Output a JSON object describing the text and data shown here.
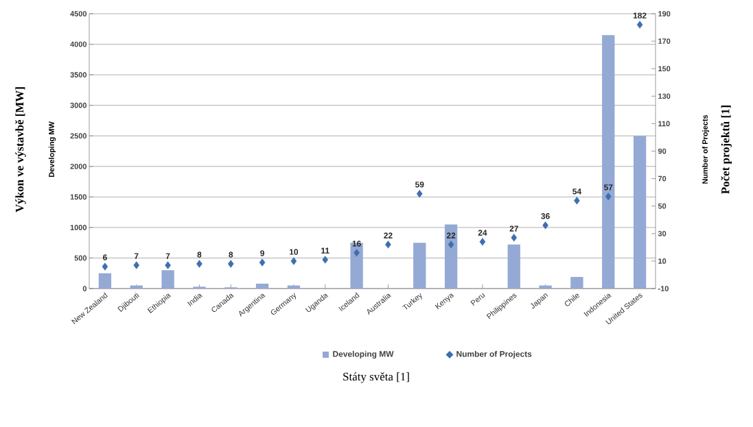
{
  "chart_data": {
    "type": "bar",
    "xlabel": "Státy světa [1]",
    "ylabel": "Výkon ve výstavbě [MW]",
    "y2label": "Počet projektů [1]",
    "annotations": [
      "Developing MW",
      "Number of Projects"
    ],
    "categories": [
      "New Zealand",
      "Djibouti",
      "Ethiopia",
      "India",
      "Canada",
      "Argentina",
      "Germany",
      "Uganda",
      "Iceland",
      "Australia",
      "Turkey",
      "Kenya",
      "Peru",
      "Philippines",
      "Japan",
      "Chile",
      "Indonesia",
      "United States"
    ],
    "series": [
      {
        "name": "Developing MW",
        "color": "#94a9d4",
        "values": [
          250,
          50,
          300,
          30,
          20,
          80,
          50,
          0,
          750,
          null,
          750,
          1050,
          0,
          720,
          50,
          190,
          4150,
          2500
        ]
      },
      {
        "name": "Number of Projects",
        "type": "scatter",
        "axis": "y2",
        "color": "#3d6fb0",
        "marker": "diamond",
        "values": [
          6,
          7,
          7,
          8,
          8,
          9,
          10,
          11,
          16,
          22,
          59,
          22,
          24,
          27,
          36,
          54,
          57,
          182
        ],
        "value_labels": [
          "6",
          "7",
          "7",
          "8",
          "8",
          "9",
          "10",
          "11",
          "16",
          "22",
          "59",
          "22",
          "24",
          "27",
          "36",
          "54",
          "57",
          "182"
        ]
      }
    ],
    "ylim": [
      0,
      4500
    ],
    "yticks": [
      0,
      500,
      1000,
      1500,
      2000,
      2500,
      3000,
      3500,
      4000,
      4500
    ],
    "y2lim": [
      -10,
      190
    ],
    "y2ticks": [
      -10,
      10,
      30,
      50,
      70,
      90,
      110,
      130,
      150,
      170,
      190
    ],
    "grid": "y",
    "legend": "bottom"
  }
}
